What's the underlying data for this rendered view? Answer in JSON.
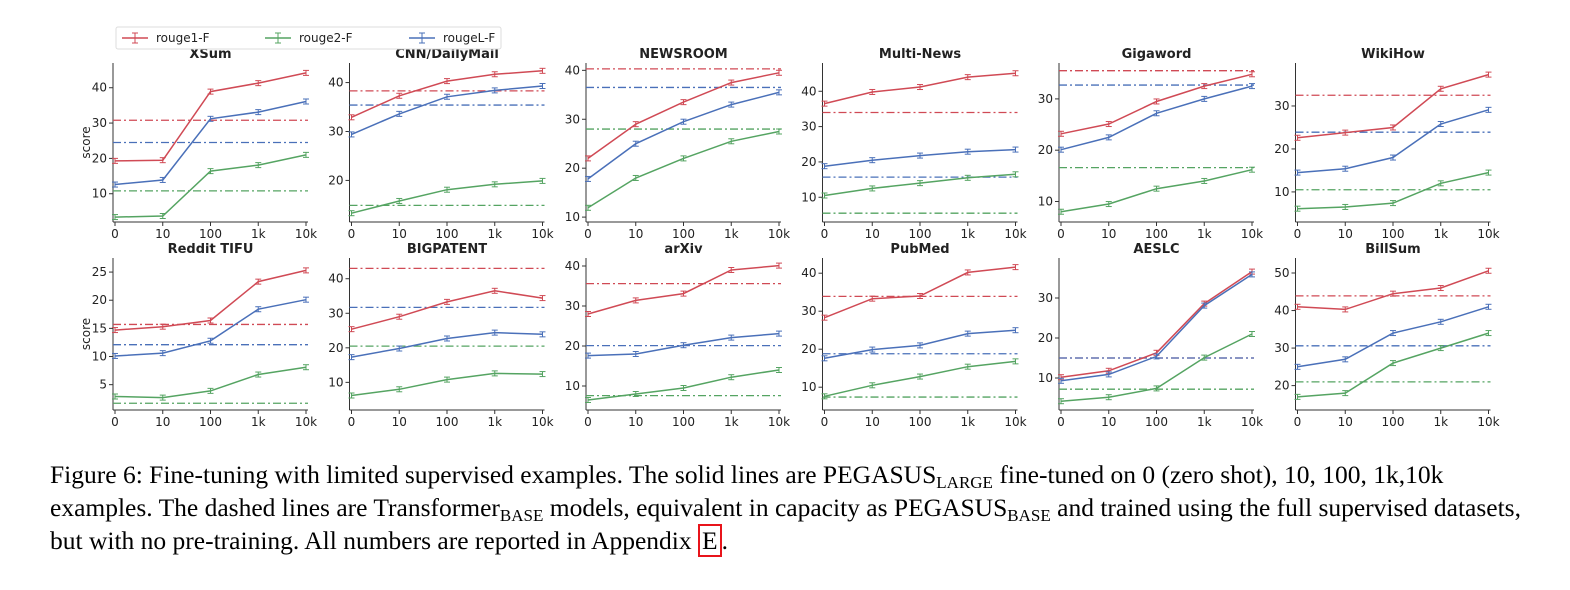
{
  "chart_data": {
    "type": "line",
    "x": [
      "0",
      "10",
      "100",
      "1k",
      "10k"
    ],
    "ylabel": "score",
    "legend": {
      "placement": "top-left",
      "entries": [
        {
          "name": "rouge1-F",
          "color": "#d04a55"
        },
        {
          "name": "rouge2-F",
          "color": "#55a462"
        },
        {
          "name": "rougeL-F",
          "color": "#4a70b9"
        }
      ]
    },
    "panels": [
      {
        "title": "XSum",
        "ylim": [
          2,
          47
        ],
        "yticks": [
          10,
          20,
          30,
          40
        ],
        "series": [
          {
            "name": "rouge1-F",
            "values": [
              19.3,
              19.5,
              38.9,
              41.3,
              44.2
            ],
            "baseline": 30.8
          },
          {
            "name": "rouge2-F",
            "values": [
              3.4,
              3.7,
              16.4,
              18.1,
              21.0
            ],
            "baseline": 10.8
          },
          {
            "name": "rougeL-F",
            "values": [
              12.6,
              13.9,
              31.2,
              33.1,
              36.1
            ],
            "baseline": 24.5
          }
        ]
      },
      {
        "title": "CNN/DailyMail",
        "ylim": [
          11.5,
          44
        ],
        "yticks": [
          20,
          30,
          40
        ],
        "series": [
          {
            "name": "rouge1-F",
            "values": [
              32.9,
              37.3,
              40.3,
              41.7,
              42.4
            ],
            "baseline": 38.3
          },
          {
            "name": "rouge2-F",
            "values": [
              13.3,
              15.8,
              18.1,
              19.2,
              19.9
            ],
            "baseline": 14.9
          },
          {
            "name": "rougeL-F",
            "values": [
              29.4,
              33.6,
              37.1,
              38.4,
              39.3
            ],
            "baseline": 35.4
          }
        ]
      },
      {
        "title": "NEWSROOM",
        "ylim": [
          9,
          41.5
        ],
        "yticks": [
          10,
          20,
          30,
          40
        ],
        "series": [
          {
            "name": "rouge1-F",
            "values": [
              22.0,
              29.0,
              33.5,
              37.5,
              39.5
            ],
            "baseline": 40.3
          },
          {
            "name": "rouge2-F",
            "values": [
              11.9,
              18.0,
              22.0,
              25.5,
              27.5
            ],
            "baseline": 28.0
          },
          {
            "name": "rougeL-F",
            "values": [
              17.8,
              25.0,
              29.5,
              33.0,
              35.5
            ],
            "baseline": 36.5
          }
        ]
      },
      {
        "title": "Multi-News",
        "ylim": [
          3,
          48
        ],
        "yticks": [
          10,
          20,
          30,
          40
        ],
        "series": [
          {
            "name": "rouge1-F",
            "values": [
              36.5,
              39.8,
              41.2,
              44.0,
              45.1
            ],
            "baseline": 34.0
          },
          {
            "name": "rouge2-F",
            "values": [
              10.5,
              12.5,
              14.0,
              15.5,
              16.5
            ],
            "baseline": 5.5
          },
          {
            "name": "rougeL-F",
            "values": [
              18.8,
              20.5,
              21.8,
              22.9,
              23.5
            ],
            "baseline": 15.7
          }
        ]
      },
      {
        "title": "Gigaword",
        "ylim": [
          6,
          37
        ],
        "yticks": [
          10,
          20,
          30
        ],
        "series": [
          {
            "name": "rouge1-F",
            "values": [
              23.2,
              25.1,
              29.5,
              32.5,
              34.8
            ],
            "baseline": 35.5
          },
          {
            "name": "rouge2-F",
            "values": [
              8.0,
              9.5,
              12.5,
              14.0,
              16.2
            ],
            "baseline": 16.6
          },
          {
            "name": "rougeL-F",
            "values": [
              20.1,
              22.5,
              27.2,
              30.0,
              32.5
            ],
            "baseline": 32.7
          }
        ]
      },
      {
        "title": "WikiHow",
        "ylim": [
          3,
          40
        ],
        "yticks": [
          10,
          20,
          30
        ],
        "series": [
          {
            "name": "rouge1-F",
            "values": [
              22.6,
              23.8,
              25.0,
              34.0,
              37.3
            ],
            "baseline": 32.5
          },
          {
            "name": "rouge2-F",
            "values": [
              6.1,
              6.5,
              7.4,
              12.0,
              14.5
            ],
            "baseline": 10.5
          },
          {
            "name": "rougeL-F",
            "values": [
              14.5,
              15.4,
              18.0,
              25.8,
              29.1
            ],
            "baseline": 23.9
          }
        ]
      },
      {
        "title": "Reddit TIFU",
        "ylim": [
          0.5,
          27.5
        ],
        "yticks": [
          5,
          10,
          15,
          20,
          25
        ],
        "series": [
          {
            "name": "rouge1-F",
            "values": [
              14.7,
              15.3,
              16.4,
              23.3,
              25.3
            ],
            "baseline": 15.7
          },
          {
            "name": "rouge2-F",
            "values": [
              2.9,
              2.7,
              3.9,
              6.8,
              8.1
            ],
            "baseline": 1.7
          },
          {
            "name": "rougeL-F",
            "values": [
              10.1,
              10.6,
              12.8,
              18.4,
              20.1
            ],
            "baseline": 12.1
          }
        ]
      },
      {
        "title": "BIGPATENT",
        "ylim": [
          2,
          46
        ],
        "yticks": [
          10,
          20,
          30,
          40
        ],
        "series": [
          {
            "name": "rouge1-F",
            "values": [
              25.4,
              29.0,
              33.3,
              36.5,
              34.4
            ],
            "baseline": 43.0
          },
          {
            "name": "rouge2-F",
            "values": [
              6.2,
              8.0,
              10.8,
              12.6,
              12.4
            ],
            "baseline": 20.5
          },
          {
            "name": "rougeL-F",
            "values": [
              17.3,
              19.8,
              22.7,
              24.4,
              23.9
            ],
            "baseline": 31.7
          }
        ]
      },
      {
        "title": "arXiv",
        "ylim": [
          4,
          42
        ],
        "yticks": [
          10,
          20,
          30,
          40
        ],
        "series": [
          {
            "name": "rouge1-F",
            "values": [
              28.0,
              31.4,
              33.1,
              39.0,
              40.1
            ],
            "baseline": 35.6
          },
          {
            "name": "rouge2-F",
            "values": [
              6.5,
              8.0,
              9.5,
              12.2,
              14.0
            ],
            "baseline": 7.6
          },
          {
            "name": "rougeL-F",
            "values": [
              17.6,
              18.0,
              20.2,
              22.1,
              23.1
            ],
            "baseline": 20.1
          }
        ]
      },
      {
        "title": "PubMed",
        "ylim": [
          4,
          44
        ],
        "yticks": [
          10,
          20,
          30,
          40
        ],
        "series": [
          {
            "name": "rouge1-F",
            "values": [
              28.3,
              33.3,
              34.0,
              40.2,
              41.6
            ],
            "baseline": 33.9
          },
          {
            "name": "rouge2-F",
            "values": [
              7.6,
              10.5,
              12.8,
              15.4,
              16.8
            ],
            "baseline": 7.4
          },
          {
            "name": "rougeL-F",
            "values": [
              17.6,
              19.9,
              21.0,
              24.1,
              25.0
            ],
            "baseline": 18.8
          }
        ]
      },
      {
        "title": "AESLC",
        "ylim": [
          2,
          40
        ],
        "yticks": [
          10,
          20,
          30
        ],
        "series": [
          {
            "name": "rouge1-F",
            "values": [
              10.2,
              11.8,
              16.3,
              28.6,
              36.6
            ],
            "baseline": 15.0
          },
          {
            "name": "rouge2-F",
            "values": [
              4.2,
              5.2,
              7.4,
              15.1,
              21.0
            ],
            "baseline": 7.2
          },
          {
            "name": "rougeL-F",
            "values": [
              9.3,
              10.9,
              15.4,
              28.1,
              35.9
            ],
            "baseline": 15.0
          }
        ]
      },
      {
        "title": "BillSum",
        "ylim": [
          13.5,
          54
        ],
        "yticks": [
          20,
          30,
          40,
          50
        ],
        "series": [
          {
            "name": "rouge1-F",
            "values": [
              41.0,
              40.3,
              44.5,
              46.0,
              50.6
            ],
            "baseline": 43.9
          },
          {
            "name": "rouge2-F",
            "values": [
              17.0,
              18.0,
              26.0,
              30.0,
              34.0
            ],
            "baseline": 21.0
          },
          {
            "name": "rougeL-F",
            "values": [
              25.0,
              27.0,
              34.0,
              37.0,
              41.0
            ],
            "baseline": 30.6
          }
        ]
      }
    ]
  },
  "caption": {
    "t1": "Figure 6: Fine-tuning with limited supervised examples. The solid lines are PEGASUS",
    "s1": "LARGE",
    "t2": " fine-tuned on 0 (zero shot), 10, 100, 1k,10k examples. The dashed lines are Transformer",
    "s2": "BASE",
    "t3": " models, equivalent in capacity as PEGASUS",
    "s3": "BASE",
    "t4": " and trained using the full supervised datasets, but with no pre-training. All numbers are reported in Appendix ",
    "ref": "E",
    "t5": "."
  },
  "colors": {
    "rouge1": "#d04a55",
    "rouge2": "#55a462",
    "rougeL": "#4a70b9",
    "axis": "#333333"
  }
}
